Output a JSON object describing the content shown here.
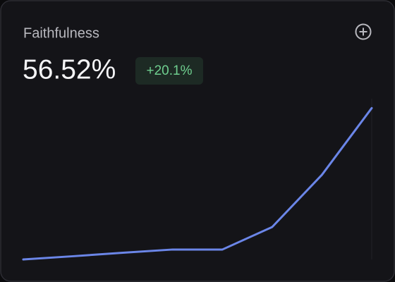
{
  "card": {
    "title": "Faithfulness",
    "value": "56.52%",
    "change": "+20.1%"
  },
  "chart_data": {
    "type": "line",
    "categories": [
      null,
      null,
      null,
      null,
      null,
      null,
      null,
      null
    ],
    "values": [
      0,
      1.2,
      2.5,
      3.7,
      3.7,
      12.1,
      31.6,
      56.5
    ],
    "color": "#6b86e8",
    "ylim": [
      0,
      60
    ]
  }
}
